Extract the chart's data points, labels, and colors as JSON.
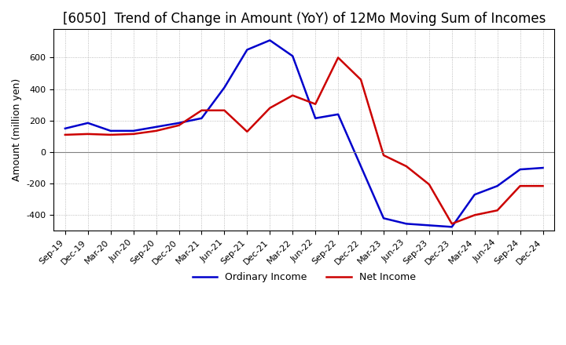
{
  "title": "[6050]  Trend of Change in Amount (YoY) of 12Mo Moving Sum of Incomes",
  "ylabel": "Amount (million yen)",
  "x_labels": [
    "Sep-19",
    "Dec-19",
    "Mar-20",
    "Jun-20",
    "Sep-20",
    "Dec-20",
    "Mar-21",
    "Jun-21",
    "Sep-21",
    "Dec-21",
    "Mar-22",
    "Jun-22",
    "Sep-22",
    "Dec-22",
    "Mar-23",
    "Jun-23",
    "Sep-23",
    "Dec-23",
    "Mar-24",
    "Jun-24",
    "Sep-24",
    "Dec-24"
  ],
  "ordinary_income": [
    150,
    185,
    135,
    135,
    160,
    185,
    215,
    410,
    650,
    710,
    610,
    215,
    240,
    -90,
    -420,
    -455,
    -465,
    -475,
    -270,
    -215,
    -110,
    -100
  ],
  "net_income": [
    110,
    115,
    110,
    115,
    135,
    170,
    265,
    265,
    130,
    280,
    360,
    305,
    600,
    460,
    -20,
    -90,
    -205,
    -455,
    -400,
    -370,
    -215,
    -215
  ],
  "ordinary_color": "#0000cc",
  "net_color": "#cc0000",
  "ylim": [
    -500,
    780
  ],
  "yticks": [
    -400,
    -200,
    0,
    200,
    400,
    600
  ],
  "background_color": "#ffffff",
  "grid_color": "#aaaaaa",
  "title_fontsize": 12,
  "axis_fontsize": 9,
  "tick_fontsize": 8,
  "legend_labels": [
    "Ordinary Income",
    "Net Income"
  ]
}
